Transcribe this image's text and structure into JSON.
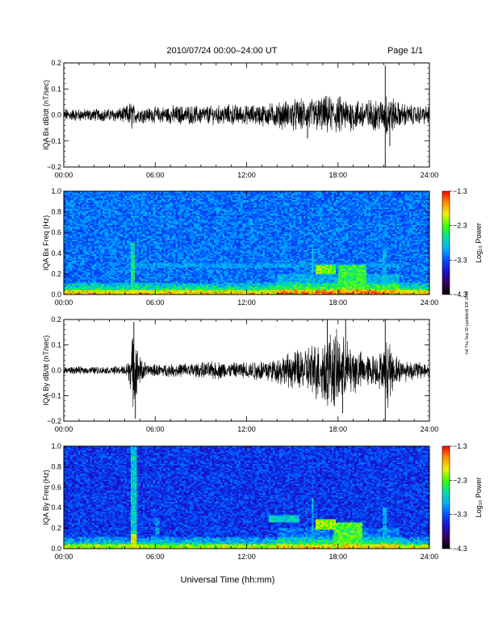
{
  "header": {
    "title": "2010/07/24  00:00–24:00 UT",
    "page": "Page 1/1"
  },
  "footer": {
    "xlabel": "Universal Time (hh:mm)"
  },
  "side_note": "mit Thu Sep 30 (updated) IDF 2010",
  "colors": {
    "trace": "#000000",
    "colormap": [
      "#000000",
      "#3a0060",
      "#1a10c8",
      "#0050ff",
      "#00b0ff",
      "#00e0a0",
      "#40ff00",
      "#f0f000",
      "#ff9000",
      "#ff0000"
    ]
  },
  "chart_data": [
    {
      "type": "line",
      "ylabel": "IQA Bx dB/dt (nT/sec)",
      "ylim": [
        -0.2,
        0.2
      ],
      "yticks": [
        "0.2",
        "0.1",
        "0.0",
        "−0.1",
        "−0.2"
      ],
      "xlim": [
        0,
        24
      ],
      "xticks": [
        "00:00",
        "06:00",
        "12:00",
        "18:00",
        "24:00"
      ],
      "envelope": {
        "x": [
          0,
          1,
          2,
          3,
          4,
          4.5,
          4.6,
          5,
          6,
          7,
          8,
          9,
          10,
          11,
          12,
          13,
          14,
          15,
          16,
          17,
          18,
          19,
          20,
          21,
          21.2,
          21.5,
          22,
          23,
          24
        ],
        "amp": [
          0.02,
          0.02,
          0.02,
          0.02,
          0.025,
          0.05,
          0.03,
          0.025,
          0.025,
          0.03,
          0.03,
          0.03,
          0.03,
          0.035,
          0.03,
          0.035,
          0.04,
          0.05,
          0.05,
          0.06,
          0.06,
          0.05,
          0.05,
          0.05,
          0.08,
          0.06,
          0.04,
          0.03,
          0.03
        ]
      },
      "spikes": [
        {
          "x": 21.1,
          "y": 0.19
        },
        {
          "x": 21.1,
          "y": -0.2
        },
        {
          "x": 21.4,
          "y": -0.12
        },
        {
          "x": 16.0,
          "y": -0.09
        }
      ]
    },
    {
      "type": "heatmap",
      "ylabel": "IQA Bx Freq (Hz)",
      "ylim": [
        0,
        1.0
      ],
      "yticks": [
        "1.0",
        "0.8",
        "0.6",
        "0.4",
        "0.2",
        "0.0"
      ],
      "xlim": [
        0,
        24
      ],
      "xticks": [
        "00:00",
        "06:00",
        "12:00",
        "18:00",
        "24:00"
      ],
      "colorbar": {
        "label": "Log₁₀ Power",
        "ticks": [
          "−1.3",
          "−2.3",
          "−3.3",
          "−4.3"
        ],
        "range": [
          -4.3,
          -1.3
        ]
      },
      "features": [
        {
          "t0": 4.4,
          "t1": 4.7,
          "f0": 0,
          "f1": 0.5,
          "level": 0.55
        },
        {
          "t0": 4.0,
          "t1": 22.0,
          "f0": 0.26,
          "f1": 0.3,
          "level": 0.4
        },
        {
          "t0": 16.5,
          "t1": 17.8,
          "f0": 0.2,
          "f1": 0.28,
          "level": 0.7
        },
        {
          "t0": 18.0,
          "t1": 19.8,
          "f0": 0.0,
          "f1": 0.28,
          "level": 0.62
        },
        {
          "t0": 16.3,
          "t1": 16.4,
          "f0": 0,
          "f1": 0.5,
          "level": 0.45
        },
        {
          "t0": 21.0,
          "t1": 21.2,
          "f0": 0,
          "f1": 0.45,
          "level": 0.45
        }
      ]
    },
    {
      "type": "line",
      "ylabel": "IQA By dB/dt (nT/sec)",
      "ylim": [
        -0.2,
        0.2
      ],
      "yticks": [
        "0.2",
        "0.1",
        "0.0",
        "−0.1",
        "−0.2"
      ],
      "xlim": [
        0,
        24
      ],
      "xticks": [
        "00:00",
        "06:00",
        "12:00",
        "18:00",
        "24:00"
      ],
      "envelope": {
        "x": [
          0,
          1,
          2,
          3,
          4,
          4.4,
          4.6,
          4.9,
          5.5,
          6,
          7,
          8,
          9,
          10,
          11,
          12,
          13,
          14,
          15,
          16,
          17,
          17.5,
          18,
          18.5,
          19,
          19.5,
          20,
          21,
          21.3,
          21.6,
          22,
          23,
          24
        ],
        "amp": [
          0.012,
          0.012,
          0.012,
          0.012,
          0.015,
          0.06,
          0.15,
          0.05,
          0.02,
          0.02,
          0.02,
          0.025,
          0.025,
          0.03,
          0.025,
          0.03,
          0.035,
          0.04,
          0.06,
          0.08,
          0.1,
          0.13,
          0.12,
          0.1,
          0.08,
          0.06,
          0.05,
          0.06,
          0.12,
          0.06,
          0.04,
          0.03,
          0.025
        ]
      },
      "spikes": [
        {
          "x": 4.6,
          "y": 0.19
        },
        {
          "x": 4.7,
          "y": -0.19
        },
        {
          "x": 17.3,
          "y": 0.2
        },
        {
          "x": 18.5,
          "y": 0.2
        },
        {
          "x": 21.1,
          "y": 0.2
        },
        {
          "x": 21.1,
          "y": -0.2
        },
        {
          "x": 18.3,
          "y": -0.17
        }
      ]
    },
    {
      "type": "heatmap",
      "ylabel": "IQA By Freq (Hz)",
      "ylim": [
        0,
        1.0
      ],
      "yticks": [
        "1.0",
        "0.8",
        "0.6",
        "0.4",
        "0.2",
        "0.0"
      ],
      "xlim": [
        0,
        24
      ],
      "xticks": [
        "00:00",
        "06:00",
        "12:00",
        "18:00",
        "24:00"
      ],
      "colorbar": {
        "label": "Log₁₀ Power",
        "ticks": [
          "−1.3",
          "−2.3",
          "−3.3",
          "−4.3"
        ],
        "range": [
          -4.3,
          -1.3
        ]
      },
      "features": [
        {
          "t0": 4.4,
          "t1": 4.75,
          "f0": 0,
          "f1": 1.0,
          "level": 0.5
        },
        {
          "t0": 4.4,
          "t1": 4.75,
          "f0": 0,
          "f1": 0.15,
          "level": 0.8
        },
        {
          "t0": 13.5,
          "t1": 15.5,
          "f0": 0.26,
          "f1": 0.33,
          "level": 0.5
        },
        {
          "t0": 16.5,
          "t1": 17.8,
          "f0": 0.18,
          "f1": 0.28,
          "level": 0.72
        },
        {
          "t0": 17.8,
          "t1": 19.6,
          "f0": 0.05,
          "f1": 0.25,
          "level": 0.65
        },
        {
          "t0": 6.0,
          "t1": 6.2,
          "f0": 0,
          "f1": 0.3,
          "level": 0.4
        },
        {
          "t0": 16.3,
          "t1": 16.45,
          "f0": 0,
          "f1": 0.5,
          "level": 0.45
        },
        {
          "t0": 21.0,
          "t1": 21.2,
          "f0": 0,
          "f1": 0.4,
          "level": 0.45
        }
      ]
    }
  ]
}
